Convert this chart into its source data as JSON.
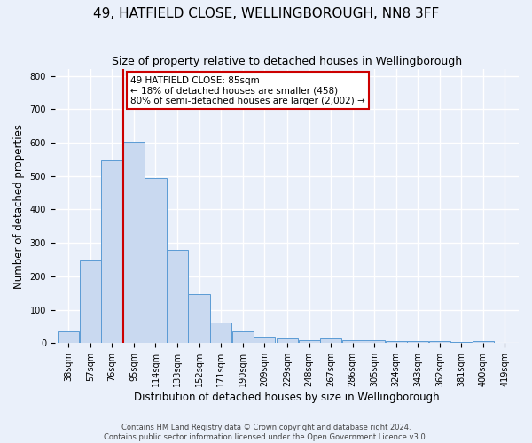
{
  "title": "49, HATFIELD CLOSE, WELLINGBOROUGH, NN8 3FF",
  "subtitle": "Size of property relative to detached houses in Wellingborough",
  "xlabel": "Distribution of detached houses by size in Wellingborough",
  "ylabel": "Number of detached properties",
  "bin_labels": [
    "38sqm",
    "57sqm",
    "76sqm",
    "95sqm",
    "114sqm",
    "133sqm",
    "152sqm",
    "171sqm",
    "190sqm",
    "209sqm",
    "229sqm",
    "248sqm",
    "267sqm",
    "286sqm",
    "305sqm",
    "324sqm",
    "343sqm",
    "362sqm",
    "381sqm",
    "400sqm",
    "419sqm"
  ],
  "bar_values": [
    35,
    248,
    548,
    603,
    493,
    278,
    148,
    62,
    35,
    20,
    15,
    10,
    15,
    10,
    10,
    7,
    5,
    5,
    3,
    5
  ],
  "bar_color": "#c9d9f0",
  "bar_edge_color": "#5b9bd5",
  "vline_x_idx": 2,
  "vline_color": "#cc0000",
  "annotation_line1": "49 HATFIELD CLOSE: 85sqm",
  "annotation_line2": "← 18% of detached houses are smaller (458)",
  "annotation_line3": "80% of semi-detached houses are larger (2,002) →",
  "annotation_box_color": "#cc0000",
  "ylim": [
    0,
    820
  ],
  "yticks": [
    0,
    100,
    200,
    300,
    400,
    500,
    600,
    700,
    800
  ],
  "footer_text": "Contains HM Land Registry data © Crown copyright and database right 2024.\nContains public sector information licensed under the Open Government Licence v3.0.",
  "background_color": "#eaf0fa",
  "grid_color": "#ffffff",
  "title_fontsize": 11,
  "subtitle_fontsize": 9,
  "axis_label_fontsize": 8.5,
  "tick_fontsize": 7,
  "footer_fontsize": 6
}
